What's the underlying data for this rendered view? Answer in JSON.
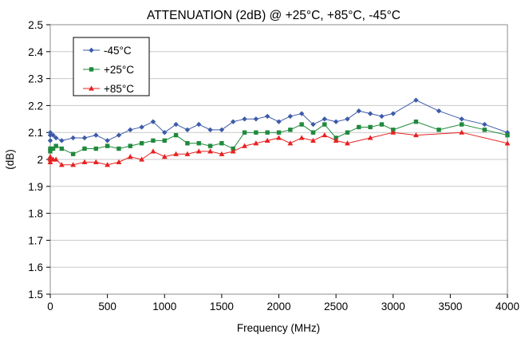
{
  "chart_data": {
    "type": "line",
    "title": "ATTENUATION (2dB) @ +25°C, +85°C, -45°C",
    "xlabel": "Frequency (MHz)",
    "ylabel": "(dB)",
    "xlim": [
      0,
      4000
    ],
    "ylim": [
      1.5,
      2.5
    ],
    "xticks": [
      "0",
      "500",
      "1000",
      "1500",
      "2000",
      "2500",
      "3000",
      "3500",
      "4000"
    ],
    "yticks": [
      "1.5",
      "1.6",
      "1.7",
      "1.8",
      "1.9",
      "2",
      "2.1",
      "2.2",
      "2.3",
      "2.4",
      "2.5"
    ],
    "grid": "horizontal",
    "legend_position": "top-left",
    "series": [
      {
        "name": "-45°C",
        "color": "#3c5aa8",
        "marker": "diamond",
        "points": [
          [
            0,
            2.07
          ],
          [
            0,
            2.09
          ],
          [
            0,
            2.1
          ],
          [
            25,
            2.09
          ],
          [
            50,
            2.08
          ],
          [
            100,
            2.07
          ],
          [
            200,
            2.08
          ],
          [
            300,
            2.08
          ],
          [
            400,
            2.09
          ],
          [
            500,
            2.07
          ],
          [
            600,
            2.09
          ],
          [
            700,
            2.11
          ],
          [
            800,
            2.12
          ],
          [
            900,
            2.14
          ],
          [
            1000,
            2.1
          ],
          [
            1100,
            2.13
          ],
          [
            1200,
            2.11
          ],
          [
            1300,
            2.13
          ],
          [
            1400,
            2.11
          ],
          [
            1500,
            2.11
          ],
          [
            1600,
            2.14
          ],
          [
            1700,
            2.15
          ],
          [
            1800,
            2.15
          ],
          [
            1900,
            2.16
          ],
          [
            2000,
            2.14
          ],
          [
            2100,
            2.16
          ],
          [
            2200,
            2.17
          ],
          [
            2300,
            2.13
          ],
          [
            2400,
            2.15
          ],
          [
            2500,
            2.14
          ],
          [
            2600,
            2.15
          ],
          [
            2700,
            2.18
          ],
          [
            2800,
            2.17
          ],
          [
            2900,
            2.16
          ],
          [
            3000,
            2.17
          ],
          [
            3200,
            2.22
          ],
          [
            3400,
            2.18
          ],
          [
            3600,
            2.15
          ],
          [
            3800,
            2.13
          ],
          [
            4000,
            2.1
          ]
        ]
      },
      {
        "name": "+25°C",
        "color": "#1f8a3c",
        "marker": "square",
        "points": [
          [
            0,
            2.03
          ],
          [
            0,
            2.04
          ],
          [
            25,
            2.04
          ],
          [
            50,
            2.05
          ],
          [
            100,
            2.04
          ],
          [
            200,
            2.02
          ],
          [
            300,
            2.04
          ],
          [
            400,
            2.04
          ],
          [
            500,
            2.05
          ],
          [
            600,
            2.04
          ],
          [
            700,
            2.05
          ],
          [
            800,
            2.06
          ],
          [
            900,
            2.07
          ],
          [
            1000,
            2.07
          ],
          [
            1100,
            2.09
          ],
          [
            1200,
            2.06
          ],
          [
            1300,
            2.06
          ],
          [
            1400,
            2.05
          ],
          [
            1500,
            2.06
          ],
          [
            1600,
            2.04
          ],
          [
            1700,
            2.1
          ],
          [
            1800,
            2.1
          ],
          [
            1900,
            2.1
          ],
          [
            2000,
            2.1
          ],
          [
            2100,
            2.11
          ],
          [
            2200,
            2.13
          ],
          [
            2300,
            2.1
          ],
          [
            2400,
            2.13
          ],
          [
            2500,
            2.08
          ],
          [
            2600,
            2.1
          ],
          [
            2700,
            2.12
          ],
          [
            2800,
            2.12
          ],
          [
            2900,
            2.13
          ],
          [
            3000,
            2.11
          ],
          [
            3200,
            2.14
          ],
          [
            3400,
            2.11
          ],
          [
            3600,
            2.13
          ],
          [
            3800,
            2.11
          ],
          [
            4000,
            2.09
          ]
        ]
      },
      {
        "name": "+85°C",
        "color": "#e82020",
        "marker": "triangle",
        "points": [
          [
            0,
            1.99
          ],
          [
            0,
            2.0
          ],
          [
            0,
            2.01
          ],
          [
            25,
            2.0
          ],
          [
            50,
            2.0
          ],
          [
            100,
            1.98
          ],
          [
            200,
            1.98
          ],
          [
            300,
            1.99
          ],
          [
            400,
            1.99
          ],
          [
            500,
            1.98
          ],
          [
            600,
            1.99
          ],
          [
            700,
            2.01
          ],
          [
            800,
            2.0
          ],
          [
            900,
            2.03
          ],
          [
            1000,
            2.01
          ],
          [
            1100,
            2.02
          ],
          [
            1200,
            2.02
          ],
          [
            1300,
            2.03
          ],
          [
            1400,
            2.03
          ],
          [
            1500,
            2.02
          ],
          [
            1600,
            2.03
          ],
          [
            1700,
            2.05
          ],
          [
            1800,
            2.06
          ],
          [
            1900,
            2.07
          ],
          [
            2000,
            2.08
          ],
          [
            2100,
            2.06
          ],
          [
            2200,
            2.08
          ],
          [
            2300,
            2.07
          ],
          [
            2400,
            2.09
          ],
          [
            2500,
            2.07
          ],
          [
            2600,
            2.06
          ],
          [
            2800,
            2.08
          ],
          [
            3000,
            2.1
          ],
          [
            3200,
            2.09
          ],
          [
            3600,
            2.1
          ],
          [
            4000,
            2.06
          ]
        ]
      }
    ]
  }
}
